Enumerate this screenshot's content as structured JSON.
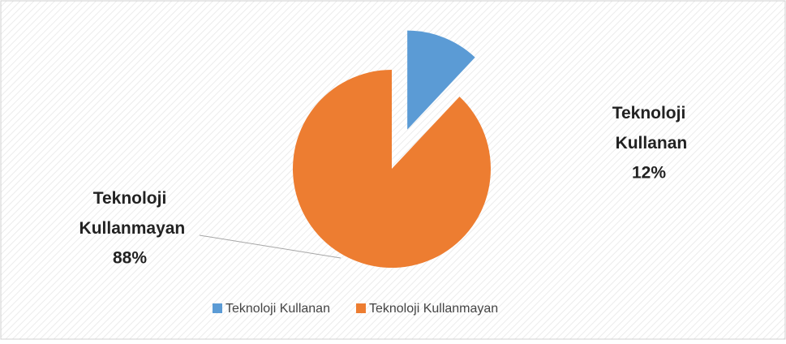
{
  "chart_data": {
    "type": "pie",
    "categories": [
      "Teknoloji Kullanan",
      "Teknoloji Kullanmayan"
    ],
    "values": [
      12,
      88
    ],
    "value_labels": [
      "12%",
      "88%"
    ],
    "colors": [
      "#5b9bd5",
      "#ed7d31"
    ],
    "exploded": [
      true,
      false
    ],
    "legend": "bottom"
  }
}
